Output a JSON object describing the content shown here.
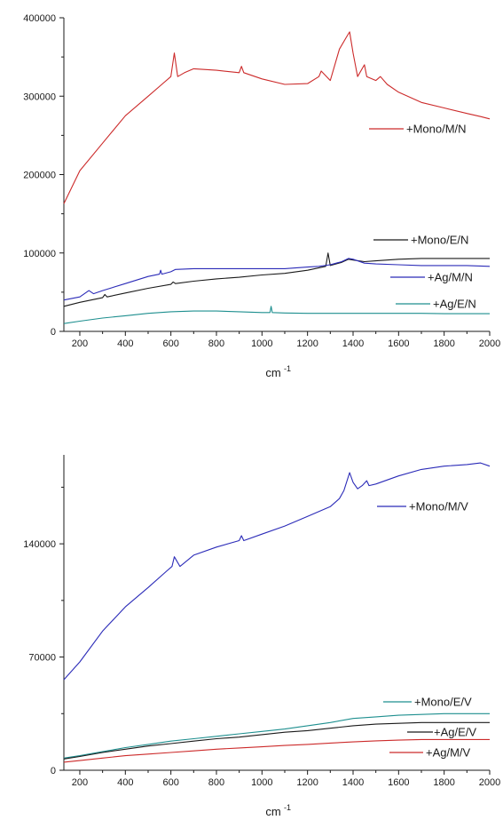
{
  "chart_data": [
    {
      "type": "line",
      "xlabel": "cm",
      "xlabel_superscript": "-1",
      "ylabel": "",
      "xlim": [
        130,
        2000
      ],
      "ylim": [
        0,
        400000
      ],
      "x_ticks": [
        200,
        400,
        600,
        800,
        1000,
        1200,
        1400,
        1600,
        1800,
        2000
      ],
      "x_tick_labels": [
        "200",
        "400",
        "600",
        "800",
        "1000",
        "1200",
        "1400",
        "1600",
        "1800",
        "2000"
      ],
      "y_ticks": [
        0,
        100000,
        200000,
        300000,
        400000
      ],
      "y_tick_labels": [
        "0",
        "100000",
        "200000",
        "300000",
        "400000"
      ],
      "grid": false,
      "legend_placement": "inline, right of each series",
      "series": [
        {
          "name": "+Mono/M/N",
          "color": "#cc2a2a",
          "x": [
            130,
            200,
            300,
            400,
            500,
            560,
            600,
            615,
            630,
            660,
            700,
            800,
            900,
            910,
            920,
            1000,
            1100,
            1200,
            1250,
            1260,
            1300,
            1340,
            1370,
            1385,
            1400,
            1420,
            1450,
            1460,
            1500,
            1520,
            1550,
            1600,
            1700,
            1800,
            1900,
            1960,
            2000
          ],
          "y": [
            163000,
            205000,
            240000,
            275000,
            300000,
            315000,
            325000,
            355000,
            325000,
            330000,
            335000,
            333000,
            330000,
            338000,
            330000,
            322000,
            315000,
            316000,
            325000,
            332000,
            320000,
            360000,
            375000,
            382000,
            355000,
            325000,
            340000,
            325000,
            320000,
            325000,
            315000,
            305000,
            292000,
            285000,
            278000,
            274000,
            271000
          ]
        },
        {
          "name": "+Mono/E/N",
          "color": "#1a1a1a",
          "x": [
            130,
            200,
            300,
            310,
            320,
            400,
            500,
            600,
            610,
            620,
            700,
            800,
            900,
            1000,
            1100,
            1150,
            1200,
            1280,
            1290,
            1300,
            1350,
            1380,
            1400,
            1450,
            1500,
            1600,
            1700,
            1800,
            1900,
            2000
          ],
          "y": [
            32000,
            37000,
            43000,
            47000,
            44000,
            49000,
            55000,
            60000,
            63000,
            61000,
            64000,
            67000,
            69000,
            72000,
            74000,
            76000,
            78000,
            83000,
            100000,
            84000,
            88000,
            92000,
            91000,
            89000,
            90000,
            92000,
            93000,
            93000,
            93000,
            93000
          ]
        },
        {
          "name": "+Ag/M/N",
          "color": "#2b2bb8",
          "x": [
            130,
            200,
            240,
            260,
            300,
            400,
            500,
            550,
            555,
            560,
            600,
            620,
            700,
            800,
            900,
            1000,
            1100,
            1200,
            1250,
            1300,
            1350,
            1380,
            1400,
            1450,
            1500,
            1600,
            1700,
            1800,
            1900,
            2000
          ],
          "y": [
            40000,
            44000,
            52000,
            48000,
            52000,
            61000,
            70000,
            73000,
            78000,
            73000,
            76000,
            79000,
            80000,
            80000,
            80000,
            80000,
            80000,
            82000,
            83000,
            85000,
            89000,
            93000,
            92000,
            87000,
            86000,
            85000,
            84000,
            84000,
            84000,
            83000
          ]
        },
        {
          "name": "+Ag/E/N",
          "color": "#1e8f8f",
          "x": [
            130,
            200,
            300,
            400,
            500,
            600,
            700,
            800,
            900,
            1000,
            1035,
            1040,
            1045,
            1100,
            1200,
            1300,
            1400,
            1500,
            1600,
            1700,
            1800,
            1900,
            2000
          ],
          "y": [
            10000,
            13000,
            17000,
            20000,
            23000,
            25000,
            26000,
            26000,
            25000,
            24000,
            24000,
            32000,
            24000,
            23500,
            23000,
            23000,
            23000,
            23000,
            23000,
            23000,
            22500,
            22500,
            22500
          ]
        }
      ]
    },
    {
      "type": "line",
      "xlabel": "cm",
      "xlabel_superscript": "-1",
      "ylabel": "",
      "xlim": [
        130,
        2000
      ],
      "ylim": [
        0,
        195000
      ],
      "x_ticks": [
        200,
        400,
        600,
        800,
        1000,
        1200,
        1400,
        1600,
        1800,
        2000
      ],
      "x_tick_labels": [
        "200",
        "400",
        "600",
        "800",
        "1000",
        "1200",
        "1400",
        "1600",
        "1800",
        "2000"
      ],
      "y_ticks": [
        0,
        70000,
        140000
      ],
      "y_tick_labels": [
        "0",
        "70000",
        "140000"
      ],
      "grid": false,
      "legend_placement": "inline, right of each series",
      "series": [
        {
          "name": "+Mono/M/V",
          "color": "#2b2bb8",
          "x": [
            130,
            200,
            300,
            400,
            500,
            580,
            605,
            615,
            640,
            700,
            800,
            900,
            910,
            920,
            1000,
            1100,
            1200,
            1300,
            1340,
            1360,
            1385,
            1400,
            1420,
            1440,
            1460,
            1470,
            1500,
            1600,
            1700,
            1800,
            1900,
            1960,
            2000
          ],
          "y": [
            56000,
            67000,
            86000,
            101000,
            113000,
            123000,
            126000,
            132000,
            126000,
            133000,
            138000,
            142000,
            145000,
            142000,
            146000,
            151000,
            157000,
            163000,
            168000,
            173000,
            184000,
            178000,
            174000,
            176000,
            179000,
            176000,
            177000,
            182000,
            186000,
            188000,
            189000,
            190000,
            188000
          ]
        },
        {
          "name": "+Mono/E/V",
          "color": "#1e8f8f",
          "x": [
            130,
            200,
            300,
            400,
            500,
            600,
            700,
            800,
            900,
            1000,
            1100,
            1200,
            1300,
            1400,
            1500,
            1600,
            1700,
            1800,
            1900,
            2000
          ],
          "y": [
            7500,
            9000,
            11500,
            14000,
            16000,
            18000,
            19500,
            21000,
            22500,
            24000,
            25500,
            27500,
            29500,
            32000,
            33000,
            34000,
            34500,
            35000,
            35000,
            35000
          ]
        },
        {
          "name": "+Ag/E/V",
          "color": "#1a1a1a",
          "x": [
            130,
            200,
            300,
            400,
            500,
            600,
            700,
            800,
            900,
            1000,
            1100,
            1200,
            1300,
            1400,
            1500,
            1600,
            1700,
            1800,
            1900,
            2000
          ],
          "y": [
            7000,
            8500,
            11000,
            13000,
            15000,
            16500,
            18000,
            19500,
            20500,
            22000,
            23500,
            24500,
            26000,
            27500,
            28500,
            29000,
            29500,
            29500,
            29500,
            29500
          ]
        },
        {
          "name": "+Ag/M/V",
          "color": "#cc2a2a",
          "x": [
            130,
            200,
            300,
            400,
            500,
            600,
            700,
            800,
            900,
            1000,
            1100,
            1200,
            1300,
            1400,
            1500,
            1600,
            1700,
            1800,
            1900,
            2000
          ],
          "y": [
            5000,
            6000,
            7500,
            9000,
            10000,
            11000,
            12000,
            13000,
            13800,
            14500,
            15300,
            16000,
            16800,
            17500,
            18200,
            18600,
            19000,
            19000,
            19000,
            19000
          ]
        }
      ]
    }
  ]
}
